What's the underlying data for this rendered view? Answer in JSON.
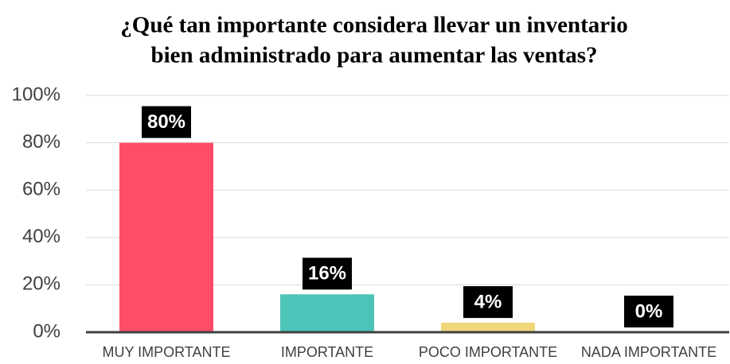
{
  "chart_data": {
    "type": "bar",
    "title": [
      "¿Qué tan importante considera llevar un inventario",
      "bien administrado para aumentar las ventas?"
    ],
    "categories": [
      "MUY IMPORTANTE",
      "IMPORTANTE",
      "POCO IMPORTANTE",
      "NADA IMPORTANTE"
    ],
    "values": [
      80,
      16,
      4,
      0
    ],
    "value_labels": [
      "80%",
      "16%",
      "4%",
      "0%"
    ],
    "colors": [
      "#ff4d67",
      "#4cc4b8",
      "#f0d67a",
      "#a5a5a5"
    ],
    "ylim": [
      0,
      100
    ],
    "yticks": [
      {
        "value": 0,
        "label": "0%"
      },
      {
        "value": 20,
        "label": "20%"
      },
      {
        "value": 40,
        "label": "40%"
      },
      {
        "value": 60,
        "label": "60%"
      },
      {
        "value": 80,
        "label": "80%"
      },
      {
        "value": 100,
        "label": "100%"
      }
    ],
    "grid": true
  }
}
